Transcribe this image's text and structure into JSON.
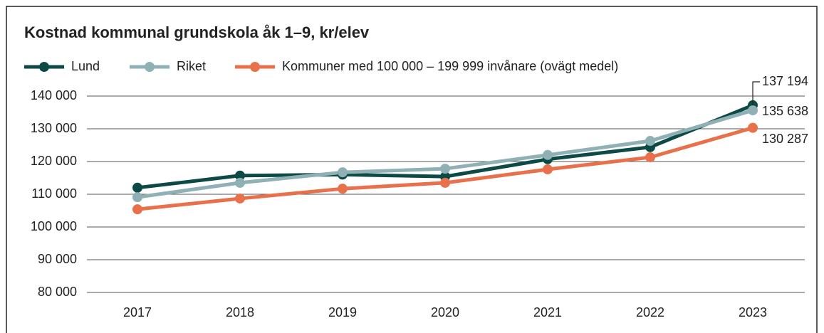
{
  "chart_data": {
    "type": "line",
    "title": "Kostnad kommunal grundskola åk 1–9, kr/elev",
    "categories": [
      "2017",
      "2018",
      "2019",
      "2020",
      "2021",
      "2022",
      "2023"
    ],
    "series": [
      {
        "name": "Lund",
        "color": "#0d4a45",
        "values": [
          112000,
          115700,
          116000,
          115400,
          120700,
          124400,
          137194
        ],
        "value_labels": [
          null,
          null,
          null,
          null,
          null,
          null,
          "137 194"
        ]
      },
      {
        "name": "Riket",
        "color": "#8fb0b5",
        "values": [
          109100,
          113500,
          116700,
          117800,
          122000,
          126300,
          135638
        ],
        "value_labels": [
          null,
          null,
          null,
          null,
          null,
          null,
          "135 638"
        ]
      },
      {
        "name": "Kommuner med 100 000 – 199 999 invånare (ovägt medel)",
        "color": "#e8704a",
        "values": [
          105400,
          108700,
          111700,
          113500,
          117600,
          121300,
          130287
        ],
        "value_labels": [
          null,
          null,
          null,
          null,
          null,
          null,
          "130 287"
        ]
      }
    ],
    "ylim": [
      80000,
      140000
    ],
    "yticks": [
      {
        "value": 80000,
        "label": "80 000"
      },
      {
        "value": 90000,
        "label": "90 000"
      },
      {
        "value": 100000,
        "label": "100 000"
      },
      {
        "value": 110000,
        "label": "110 000"
      },
      {
        "value": 120000,
        "label": "120 000"
      },
      {
        "value": 130000,
        "label": "130 000"
      },
      {
        "value": 140000,
        "label": "140 000"
      }
    ],
    "grid": true,
    "legend": "top"
  }
}
